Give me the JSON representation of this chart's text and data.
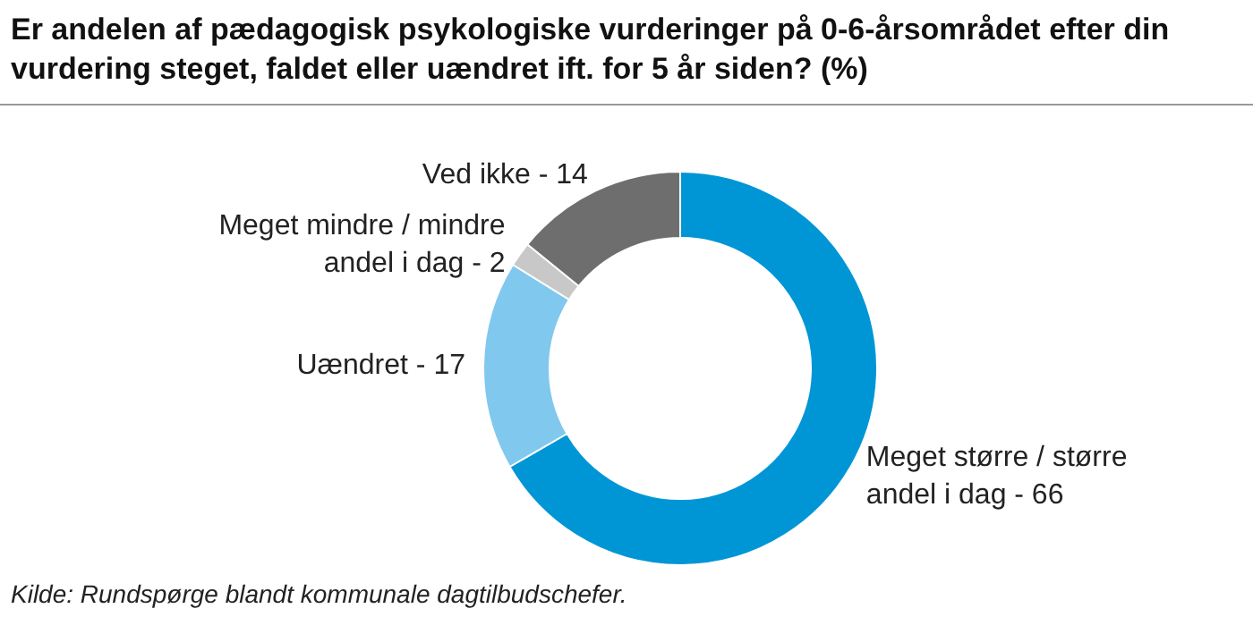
{
  "chart_data": {
    "type": "donut",
    "title": "Er andelen af pædagogisk psykologiske vurderinger på 0-6-årsområdet efter din vurdering steget, faldet eller uændret ift. for 5 år siden? (%)",
    "categories": [
      "Meget større / større andel i dag -",
      "Uændret -",
      "Meget mindre / mindre andel i dag -",
      "Ved ikke -"
    ],
    "values": [
      66,
      17,
      2,
      14
    ],
    "colors": [
      "#0096d6",
      "#80c8ee",
      "#c8c8c8",
      "#6e6e6e"
    ],
    "data_labels": true,
    "annotations": [
      "Kilde: Rundspørge blandt kommunale dagtilbudschefer."
    ]
  }
}
